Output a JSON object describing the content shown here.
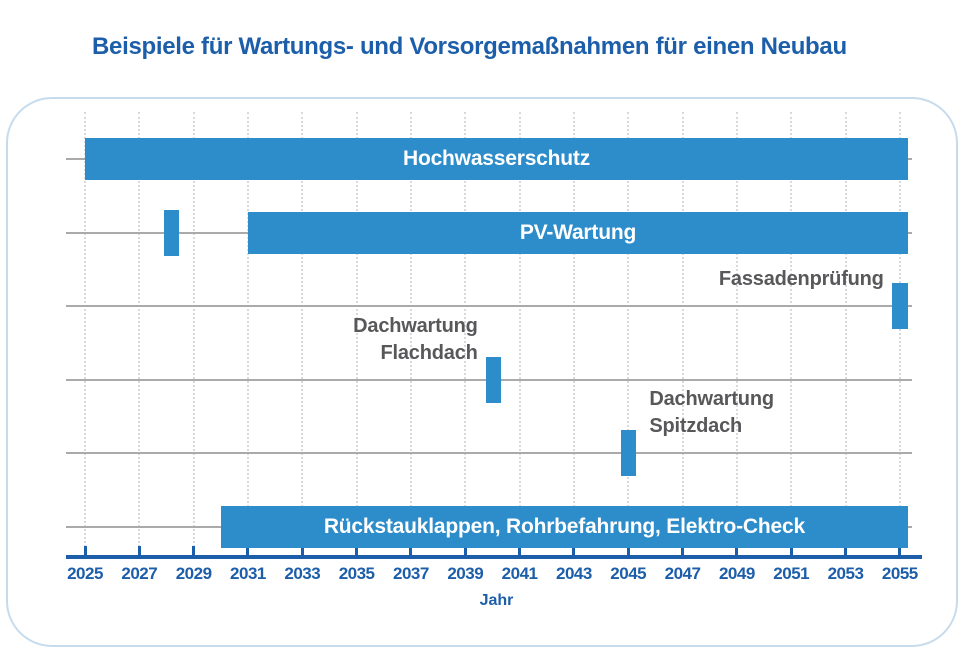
{
  "colors": {
    "bar": "#2d8cca",
    "bar_label": "#ffffff",
    "axis": "#1c5ea9",
    "title": "#1c5ea9",
    "annotation": "#58585a",
    "row_line": "#aaaaaa",
    "grid_dots": "#d4dade",
    "panel_border": "#c6dbec",
    "background": "#ffffff"
  },
  "chart_data": {
    "type": "gantt",
    "title": "Beispiele für Wartungs- und Vorsorgemaßnahmen für einen Neubau",
    "xlabel": "Jahr",
    "xlim": [
      2025,
      2055.3
    ],
    "x_ticks": [
      "2025",
      "2027",
      "2029",
      "2031",
      "2033",
      "2035",
      "2037",
      "2039",
      "2041",
      "2043",
      "2045",
      "2047",
      "2049",
      "2051",
      "2053",
      "2055"
    ],
    "grid": "vertical-dotted",
    "legend": "none",
    "rows": [
      {
        "name": "hochwasserschutz",
        "bars": [
          {
            "start": 2025,
            "end": 2055.3,
            "label": "Hochwasserschutz"
          }
        ]
      },
      {
        "name": "pv-wartung",
        "bars": [
          {
            "start": 2027.9,
            "end": 2028.45
          },
          {
            "start": 2031,
            "end": 2055.3,
            "label": "PV-Wartung"
          }
        ]
      },
      {
        "name": "fassadenpruefung",
        "bars": [
          {
            "start": 2054.7,
            "end": 2055.3
          }
        ],
        "annotation": {
          "lines": [
            "Fassadenprüfung"
          ],
          "side": "left"
        }
      },
      {
        "name": "dachwartung-flachdach",
        "bars": [
          {
            "start": 2039.75,
            "end": 2040.3
          }
        ],
        "annotation": {
          "lines": [
            "Dachwartung",
            "Flachdach"
          ],
          "side": "left"
        }
      },
      {
        "name": "dachwartung-spitzdach",
        "bars": [
          {
            "start": 2044.75,
            "end": 2045.3
          }
        ],
        "annotation": {
          "lines": [
            "Dachwartung",
            "Spitzdach"
          ],
          "side": "right"
        }
      },
      {
        "name": "rueckstauklappen",
        "bars": [
          {
            "start": 2030,
            "end": 2055.3,
            "label": "Rückstauklappen, Rohrbefahrung, Elektro-Check"
          }
        ]
      }
    ]
  }
}
